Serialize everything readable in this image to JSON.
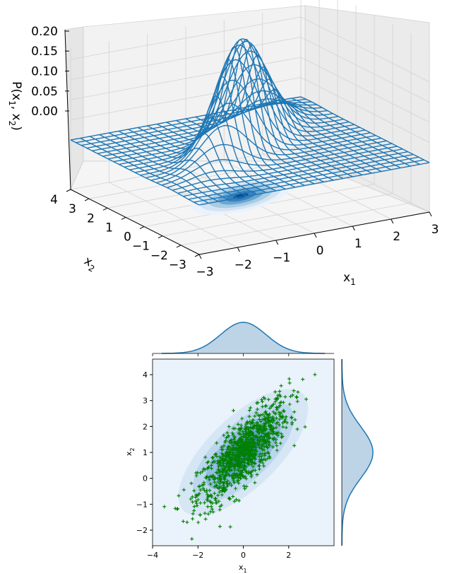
{
  "chart_data": [
    {
      "type": "surface",
      "zlabel_parts": [
        "P(x",
        "1",
        ", x",
        "2",
        ")"
      ],
      "xlabel_parts": [
        "x",
        "1"
      ],
      "ylabel_parts": [
        "x",
        "2"
      ],
      "x_ticks": [
        "−3",
        "−2",
        "−1",
        "0",
        "1",
        "2",
        "3"
      ],
      "y_ticks": [
        "−3",
        "−2",
        "−1",
        "0",
        "1",
        "2",
        "3",
        "4"
      ],
      "z_ticks": [
        "0.00",
        "0.05",
        "0.10",
        "0.15",
        "0.20"
      ],
      "xlim": [
        -3,
        3
      ],
      "ylim": [
        -3,
        4
      ],
      "zlim": [
        0,
        0.2
      ],
      "distribution": {
        "mean": [
          0,
          1
        ],
        "std": [
          1,
          1
        ],
        "correlation": 0.8
      },
      "surface_color": "#1f77b4",
      "contour_colormap": "Blues",
      "grid": true
    },
    {
      "type": "scatter",
      "xlabel_parts": [
        "x",
        "1"
      ],
      "ylabel_parts": [
        "x",
        "2"
      ],
      "x_ticks": [
        "−4",
        "−2",
        "0",
        "2"
      ],
      "y_ticks": [
        "−2",
        "−1",
        "0",
        "1",
        "2",
        "3",
        "4"
      ],
      "xlim": [
        -4,
        4
      ],
      "ylim": [
        -2.6,
        4.6
      ],
      "marker": "+",
      "marker_color": "#008000",
      "sample_count": 1000,
      "distribution": {
        "mean": [
          0,
          1
        ],
        "std": [
          1,
          1
        ],
        "correlation": 0.8
      },
      "marginals": "kde",
      "marginal_color": "#1f77b4",
      "marginal_fill": "#bdd3e6",
      "contour_colormap": "Blues"
    }
  ]
}
